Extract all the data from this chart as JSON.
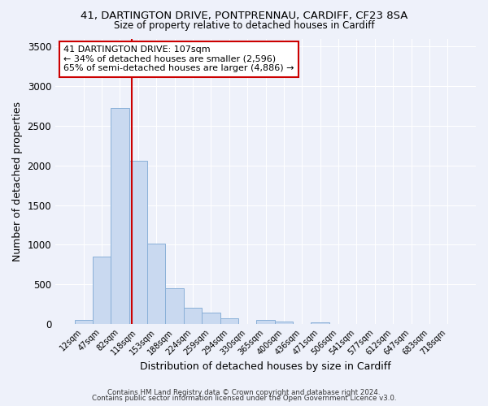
{
  "title_line1": "41, DARTINGTON DRIVE, PONTPRENNAU, CARDIFF, CF23 8SA",
  "title_line2": "Size of property relative to detached houses in Cardiff",
  "xlabel": "Distribution of detached houses by size in Cardiff",
  "ylabel": "Number of detached properties",
  "bar_labels": [
    "12sqm",
    "47sqm",
    "82sqm",
    "118sqm",
    "153sqm",
    "188sqm",
    "224sqm",
    "259sqm",
    "294sqm",
    "330sqm",
    "365sqm",
    "400sqm",
    "436sqm",
    "471sqm",
    "506sqm",
    "541sqm",
    "577sqm",
    "612sqm",
    "647sqm",
    "683sqm",
    "718sqm"
  ],
  "bar_values": [
    55,
    850,
    2720,
    2060,
    1010,
    455,
    205,
    145,
    70,
    0,
    55,
    30,
    0,
    20,
    0,
    0,
    0,
    0,
    0,
    0,
    0
  ],
  "bar_color": "#c9d9f0",
  "bar_edgecolor": "#8ab0d8",
  "ylim": [
    0,
    3600
  ],
  "yticks": [
    0,
    500,
    1000,
    1500,
    2000,
    2500,
    3000,
    3500
  ],
  "vline_x": 2.65,
  "vline_color": "#cc0000",
  "annotation_text": "41 DARTINGTON DRIVE: 107sqm\n← 34% of detached houses are smaller (2,596)\n65% of semi-detached houses are larger (4,886) →",
  "annotation_box_color": "#ffffff",
  "annotation_box_edgecolor": "#cc0000",
  "footer1": "Contains HM Land Registry data © Crown copyright and database right 2024.",
  "footer2": "Contains public sector information licensed under the Open Government Licence v3.0.",
  "background_color": "#eef1fa",
  "plot_background": "#eef1fa"
}
